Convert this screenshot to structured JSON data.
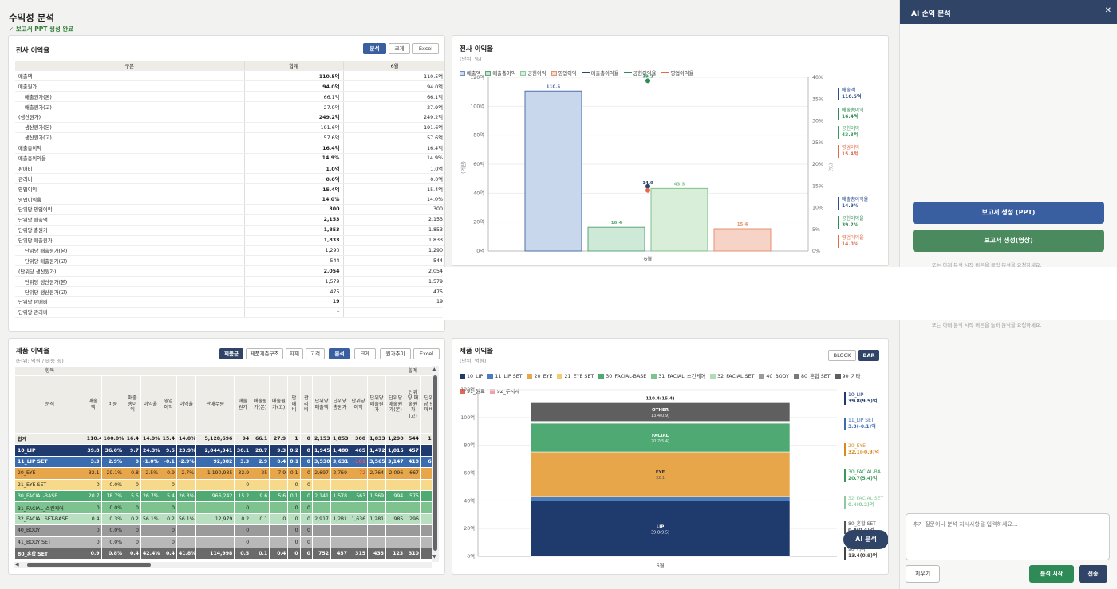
{
  "page": {
    "title": "수익성 분석",
    "status": "✓ 보고서 PPT 생성 완료"
  },
  "p1": {
    "title": "전사 이익율",
    "buttons": [
      "분석",
      "크게",
      "Excel"
    ],
    "headers": [
      "구분",
      "합계",
      "6월"
    ],
    "rows": [
      {
        "label": "매출액",
        "total": "110.5억",
        "m6": "110.5억",
        "bold": true
      },
      {
        "label": "매출원가",
        "total": "94.0억",
        "m6": "94.0억",
        "bold": true
      },
      {
        "label": "매출원가(본)",
        "total": "66.1억",
        "m6": "66.1억",
        "indent": true
      },
      {
        "label": "매출원가(고)",
        "total": "27.9억",
        "m6": "27.9억",
        "indent": true
      },
      {
        "label": "(생산원가)",
        "total": "249.2억",
        "m6": "249.2억",
        "bold": true
      },
      {
        "label": "생산원가(본)",
        "total": "191.6억",
        "m6": "191.6억",
        "indent": true
      },
      {
        "label": "생산원가(고)",
        "total": "57.6억",
        "m6": "57.6억",
        "indent": true
      },
      {
        "label": "매출총이익",
        "total": "16.4억",
        "m6": "16.4억",
        "bold": true
      },
      {
        "label": "매출총이익율",
        "total": "14.9%",
        "m6": "14.9%",
        "bold": true
      },
      {
        "label": "판매비",
        "total": "1.0억",
        "m6": "1.0억",
        "bold": true
      },
      {
        "label": "관리비",
        "total": "0.0억",
        "m6": "0.0억",
        "bold": true
      },
      {
        "label": "영업이익",
        "total": "15.4억",
        "m6": "15.4억",
        "bold": true
      },
      {
        "label": "영업이익율",
        "total": "14.0%",
        "m6": "14.0%",
        "bold": true
      },
      {
        "label": "단위당 영업이익",
        "total": "300",
        "m6": "300",
        "bold": true
      },
      {
        "label": "단위당 매출액",
        "total": "2,153",
        "m6": "2,153",
        "bold": true
      },
      {
        "label": "단위당 총원가",
        "total": "1,853",
        "m6": "1,853",
        "bold": true
      },
      {
        "label": "단위당 매출원가",
        "total": "1,833",
        "m6": "1,833",
        "bold": true
      },
      {
        "label": "단위당 매출원가(본)",
        "total": "1,290",
        "m6": "1,290",
        "indent": true
      },
      {
        "label": "단위당 매출원가(고)",
        "total": "544",
        "m6": "544",
        "indent": true
      },
      {
        "label": "(단위당 생산원가)",
        "total": "2,054",
        "m6": "2,054",
        "bold": true
      },
      {
        "label": "단위당 생산원가(본)",
        "total": "1,579",
        "m6": "1,579",
        "indent": true
      },
      {
        "label": "단위당 생산원가(고)",
        "total": "475",
        "m6": "475",
        "indent": true
      },
      {
        "label": "단위당 판매비",
        "total": "19",
        "m6": "19",
        "bold": true
      },
      {
        "label": "단위당 관리비",
        "total": "-",
        "m6": "-",
        "bold": true
      }
    ]
  },
  "p2": {
    "title": "전사 이익율",
    "unit": "(단위: %)",
    "legend": [
      {
        "name": "매출액",
        "kind": "box",
        "color": "#6b8cc4"
      },
      {
        "name": "매출총이익",
        "kind": "box",
        "color": "#5aa878"
      },
      {
        "name": "공헌이익",
        "kind": "box",
        "color": "#8cc99c"
      },
      {
        "name": "영업이익",
        "kind": "box",
        "color": "#e59070"
      },
      {
        "name": "매출총이익율",
        "kind": "line",
        "color": "#2f4466"
      },
      {
        "name": "공헌이익율",
        "kind": "line",
        "color": "#2e8b57"
      },
      {
        "name": "영업이익율",
        "kind": "line",
        "color": "#e06a4a"
      }
    ],
    "right_labels": [
      {
        "name": "매출액",
        "value": "110.5억",
        "color": "#2f4f8f"
      },
      {
        "name": "매출총이익",
        "value": "16.4억",
        "color": "#2e8b57"
      },
      {
        "name": "공헌이익",
        "value": "43.3억",
        "color": "#3a9a5a"
      },
      {
        "name": "영업이익",
        "value": "15.4억",
        "color": "#e06a4a"
      },
      {
        "name": "매출총이익율",
        "value": "14.9%",
        "color": "#2f4f8f"
      },
      {
        "name": "공헌이익율",
        "value": "39.2%",
        "color": "#2e8b57"
      },
      {
        "name": "영업이익율",
        "value": "14.0%",
        "color": "#e06a4a"
      }
    ],
    "y_ticks": [
      "0억",
      "20억",
      "40억",
      "60억",
      "80억",
      "100억",
      "120억"
    ],
    "y2_ticks": [
      "0%",
      "5%",
      "10%",
      "15%",
      "20%",
      "25%",
      "30%",
      "35%",
      "40%"
    ],
    "y_axis_label": "(억원)",
    "y2_axis_label": "(%)",
    "x_label": "6월"
  },
  "chart_data": [
    {
      "type": "bar",
      "title": "전사 이익율",
      "categories": [
        "6월"
      ],
      "ylim": [
        0,
        120
      ],
      "y2lim": [
        0,
        40
      ],
      "series": [
        {
          "name": "매출액",
          "values": [
            110.5
          ],
          "color": "#c9d7ec",
          "stroke": "#4e6fa8"
        },
        {
          "name": "매출총이익",
          "values": [
            16.4
          ],
          "color": "#cfe9d9",
          "stroke": "#5aa878"
        },
        {
          "name": "공헌이익",
          "values": [
            43.3
          ],
          "color": "#d8eed9",
          "stroke": "#7cc08a"
        },
        {
          "name": "영업이익",
          "values": [
            15.4
          ],
          "color": "#f6d3c6",
          "stroke": "#e59070"
        },
        {
          "name": "매출총이익율",
          "values": [
            14.9
          ],
          "axis": "right",
          "color": "#2f4466"
        },
        {
          "name": "공헌이익율",
          "values": [
            39.2
          ],
          "axis": "right",
          "color": "#2e8b57"
        },
        {
          "name": "영업이익율",
          "values": [
            14.0
          ],
          "axis": "right",
          "color": "#e06a4a"
        }
      ]
    },
    {
      "type": "bar",
      "stacked": true,
      "title": "제품 이익율",
      "categories": [
        "6월"
      ],
      "ylim": [
        0,
        120
      ],
      "total_label": "110.4(15.4)",
      "series": [
        {
          "name": "10_LIP",
          "values": [
            39.8
          ],
          "label": "LIP",
          "sub": "39.8(9.5)",
          "color": "#1f3a6d"
        },
        {
          "name": "11_LIP SET",
          "values": [
            3.3
          ],
          "color": "#4a7cc0"
        },
        {
          "name": "20_EYE",
          "values": [
            32.1
          ],
          "label": "EYE",
          "sub": "32.1",
          "color": "#e8a64a"
        },
        {
          "name": "21_EYE SET",
          "values": [
            0
          ],
          "color": "#f2cc70"
        },
        {
          "name": "30_FACIAL-BASE",
          "values": [
            20.7
          ],
          "label": "FACIAL",
          "sub": "20.7(5.4)",
          "color": "#4eaa72"
        },
        {
          "name": "31_FACIAL_스킨케어",
          "values": [
            0
          ],
          "color": "#7dc28f"
        },
        {
          "name": "32_FACIAL SET",
          "values": [
            0.4
          ],
          "color": "#b2dcb9"
        },
        {
          "name": "40_BODY",
          "values": [
            0
          ],
          "color": "#9a9a9a"
        },
        {
          "name": "80_혼합 SET",
          "values": [
            0.9
          ],
          "color": "#7a7a7a"
        },
        {
          "name": "90_기타",
          "values": [
            13.4
          ],
          "label": "OTHER",
          "sub": "13.4(0.9)",
          "color": "#5f5f5f"
        },
        {
          "name": "91_원료",
          "values": [
            0
          ],
          "color": "#e06a5a"
        },
        {
          "name": "92_투자재",
          "values": [
            0
          ],
          "color": "#f0a0a8"
        }
      ]
    }
  ],
  "p3": {
    "title": "제품 이익율",
    "unit": "(단위: 억원 / 비중 %)",
    "buttons": [
      "제품군",
      "제품계층구조",
      "자재",
      "고객",
      "분석",
      "크게",
      "원가추이",
      "Excel"
    ],
    "h_item": "항목",
    "h_total": "합계",
    "h_name": "분석",
    "columns": [
      "매출액",
      "비중",
      "매출총이익",
      "이익율",
      "영업이익",
      "이익율",
      "판매수량",
      "매출원가",
      "매출원가(본)",
      "매출원가(고)",
      "판매비",
      "관리비",
      "단위당 매출액",
      "단위당 총원가",
      "단위당 이익",
      "단위당 매출원가",
      "단위당 매출원가(본)",
      "단위당 매출원가(고)",
      "단위당 판매비"
    ],
    "rows": [
      {
        "name": "합계",
        "cells": [
          "110.4",
          "100.0%",
          "16.4",
          "14.9%",
          "15.4",
          "14.0%",
          "5,128,696",
          "94",
          "66.1",
          "27.9",
          "1",
          "0",
          "2,153",
          "1,853",
          "300",
          "1,833",
          "1,290",
          "544",
          "19"
        ]
      },
      {
        "name": "10_LIP",
        "cells": [
          "39.8",
          "36.0%",
          "9.7",
          "24.3%",
          "9.5",
          "23.9%",
          "2,044,341",
          "30.1",
          "20.7",
          "9.3",
          "0.2",
          "0",
          "1,945",
          "1,480",
          "465",
          "1,472",
          "1,015",
          "457",
          "9"
        ]
      },
      {
        "name": "11_LIP SET",
        "cells": [
          "3.3",
          "2.9%",
          "0",
          "-1.0%",
          "-0.1",
          "-2.9%",
          "92,082",
          "3.3",
          "2.9",
          "0.4",
          "0.1",
          "0",
          "3,530",
          "3,631",
          "-101",
          "3,565",
          "3,147",
          "418",
          "66"
        ]
      },
      {
        "name": "20_EYE",
        "cells": [
          "32.1",
          "29.1%",
          "-0.8",
          "-2.5%",
          "-0.9",
          "-2.7%",
          "1,190,935",
          "32.9",
          "25",
          "7.9",
          "0.1",
          "0",
          "2,697",
          "2,769",
          "-72",
          "2,764",
          "2,096",
          "667",
          "5"
        ]
      },
      {
        "name": "21_EYE SET",
        "cells": [
          "0",
          "0.0%",
          "0",
          "",
          "0",
          "",
          "",
          "0",
          "",
          "",
          "0",
          "0",
          "",
          "",
          "",
          "",
          "",
          "",
          ""
        ]
      },
      {
        "name": "30_FACIAL-BASE",
        "cells": [
          "20.7",
          "18.7%",
          "5.5",
          "26.7%",
          "5.4",
          "26.3%",
          "966,242",
          "15.2",
          "9.6",
          "5.6",
          "0.1",
          "0",
          "2,141",
          "1,578",
          "563",
          "1,569",
          "994",
          "575",
          "9"
        ]
      },
      {
        "name": "31_FACIAL_스킨케어",
        "cells": [
          "0",
          "0.0%",
          "0",
          "",
          "0",
          "",
          "",
          "0",
          "",
          "",
          "0",
          "0",
          "",
          "",
          "",
          "",
          "",
          "",
          ""
        ]
      },
      {
        "name": "32_FACIAL SET-BASE",
        "cells": [
          "0.4",
          "0.3%",
          "0.2",
          "56.1%",
          "0.2",
          "56.1%",
          "12,979",
          "0.2",
          "0.1",
          "0",
          "0",
          "0",
          "2,917",
          "1,281",
          "1,636",
          "1,281",
          "985",
          "296",
          ""
        ]
      },
      {
        "name": "40_BODY",
        "cells": [
          "0",
          "0.0%",
          "0",
          "",
          "0",
          "",
          "",
          "0",
          "",
          "",
          "0",
          "0",
          "",
          "",
          "",
          "",
          "",
          "",
          ""
        ]
      },
      {
        "name": "41_BODY SET",
        "cells": [
          "0",
          "0.0%",
          "0",
          "",
          "0",
          "",
          "",
          "0",
          "",
          "",
          "0",
          "0",
          "",
          "",
          "",
          "",
          "",
          "",
          ""
        ]
      },
      {
        "name": "80_혼합 SET",
        "cells": [
          "0.9",
          "0.8%",
          "0.4",
          "42.4%",
          "0.4",
          "41.8%",
          "114,998",
          "0.5",
          "0.1",
          "0.4",
          "0",
          "0",
          "752",
          "437",
          "315",
          "433",
          "123",
          "310",
          "5"
        ]
      }
    ]
  },
  "p4": {
    "title": "제품 이익율",
    "unit": "(단위: 억원)",
    "toggle": [
      "BLOCK",
      "BAR"
    ],
    "y_ticks": [
      "0억",
      "20억",
      "40억",
      "60억",
      "80억",
      "100억",
      "120억"
    ],
    "x_label": "6월",
    "right_labels": [
      {
        "name": "10_LIP",
        "value": "39.8(9.5)억",
        "color": "#1f3a6d"
      },
      {
        "name": "11_LIP SET",
        "value": "3.3(-0.1)억",
        "color": "#3a6cb0"
      },
      {
        "name": "20_EYE",
        "value": "32.1(-0.9)억",
        "color": "#d88a20"
      },
      {
        "name": "30_FACIAL-BA...",
        "value": "20.7(5.4)억",
        "color": "#3a9a5a"
      },
      {
        "name": "32_FACIAL SET",
        "value": "0.4(0.2)억",
        "color": "#8cc99c"
      },
      {
        "name": "80_혼합 SET",
        "value": "0.9(0.4)억",
        "color": "#555555"
      },
      {
        "name": "90_기타",
        "value": "13.4(0.9)억",
        "color": "#444444"
      }
    ],
    "ai_button": "AI 분석"
  },
  "side": {
    "title": "AI 손익 분석",
    "close": "✕",
    "btn_ppt": "보고서 생성 (PPT)",
    "btn_video": "보고서 생성(영상)",
    "hint1": "또는 아래 분석 시작 버튼을 클릭 분석을 요청하세요.",
    "hint2": "또는 아래 분석 시작 버튼을 눌러 분석을 요청하세요.",
    "placeholder": "추가 질문이나 분석 지시사항을 입력하세요...",
    "clear": "지우기",
    "start": "분석 시작",
    "send": "전송"
  }
}
